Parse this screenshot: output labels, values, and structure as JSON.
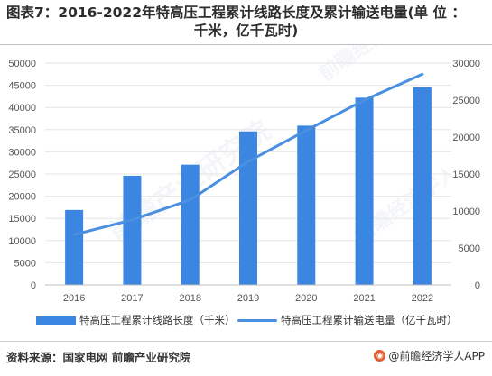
{
  "header": {
    "title_line1": "图表7：2016-2022年特高压工程累计线路长度及累计输送电量(单 位 ：",
    "title_line2": "千米，亿千瓦时)"
  },
  "chart_data": {
    "type": "bar",
    "categories": [
      "2016",
      "2017",
      "2018",
      "2019",
      "2020",
      "2021",
      "2022"
    ],
    "series": [
      {
        "name": "特高压工程累计线路长度（千米）",
        "kind": "bar",
        "axis": "left",
        "values": [
          16900,
          24600,
          27100,
          34600,
          35900,
          42200,
          44600
        ]
      },
      {
        "name": "特高压工程累计输送电量（亿千瓦时）",
        "kind": "line",
        "axis": "right",
        "values": [
          6800,
          8800,
          11500,
          16700,
          20900,
          25000,
          28500
        ]
      }
    ],
    "y_left": {
      "min": 0,
      "max": 50000,
      "ticks": [
        "0",
        "5000",
        "10000",
        "15000",
        "20000",
        "25000",
        "30000",
        "35000",
        "40000",
        "45000",
        "50000"
      ]
    },
    "y_right": {
      "min": 0,
      "max": 30000,
      "ticks": [
        "0",
        "5000",
        "10000",
        "15000",
        "20000",
        "25000",
        "30000"
      ]
    },
    "colors": {
      "bar": "#3b86e0",
      "line": "#4a8fe0",
      "grid": "#e6e6e6"
    },
    "legend_position": "bottom"
  },
  "footer": {
    "source": "资料来源：国家电网 前瞻产业研究院",
    "brand": "@前瞻经济学人APP"
  },
  "icons": {
    "brand": "qianzhan-logo-icon"
  }
}
